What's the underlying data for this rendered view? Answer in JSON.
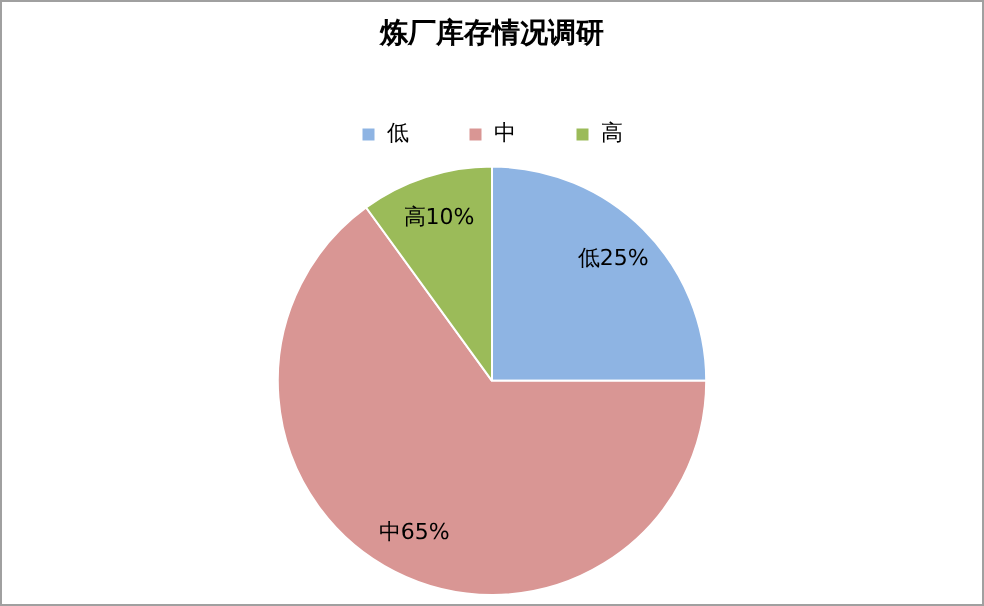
{
  "chart_data": {
    "type": "pie",
    "title": "炼厂库存情况调研",
    "categories": [
      "低",
      "中",
      "高"
    ],
    "values": [
      25,
      65,
      10
    ],
    "colors": [
      "#8eb4e3",
      "#d99694",
      "#9bbb59"
    ],
    "value_labels": [
      "低25%",
      "中65%",
      "高10%"
    ],
    "legend": "top"
  }
}
